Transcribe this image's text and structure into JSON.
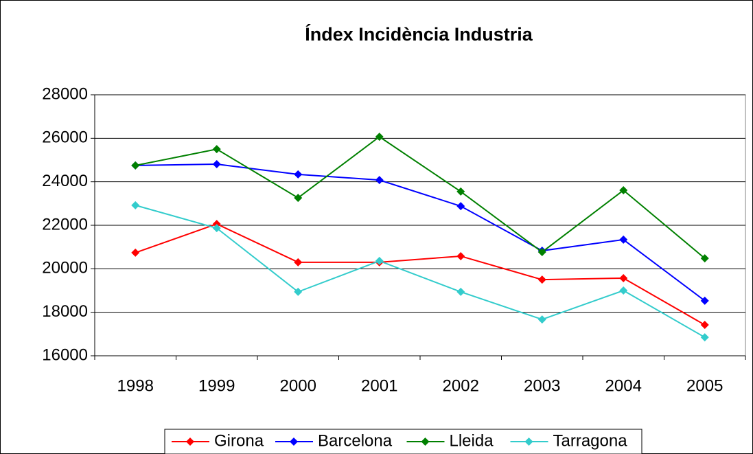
{
  "chart_data": {
    "type": "line",
    "title": "Índex Incidència Industria",
    "categories": [
      "1998",
      "1999",
      "2000",
      "2001",
      "2002",
      "2003",
      "2004",
      "2005"
    ],
    "series": [
      {
        "name": "Girona",
        "color": "#ff0000",
        "values": [
          20740,
          22060,
          20300,
          20300,
          20580,
          19500,
          19570,
          17420
        ]
      },
      {
        "name": "Barcelona",
        "color": "#0000ff",
        "values": [
          24750,
          24810,
          24340,
          24080,
          22880,
          20830,
          21340,
          18530
        ]
      },
      {
        "name": "Lleida",
        "color": "#008000",
        "values": [
          24750,
          25500,
          23260,
          26070,
          23550,
          20770,
          23610,
          20480
        ]
      },
      {
        "name": "Tarragona",
        "color": "#33cccc",
        "values": [
          22920,
          21870,
          18940,
          20360,
          18940,
          17670,
          19000,
          16850
        ]
      }
    ],
    "ylim": [
      16000,
      28000
    ],
    "yticks": [
      16000,
      18000,
      20000,
      22000,
      24000,
      26000,
      28000
    ],
    "grid": true,
    "legend": "bottom"
  }
}
